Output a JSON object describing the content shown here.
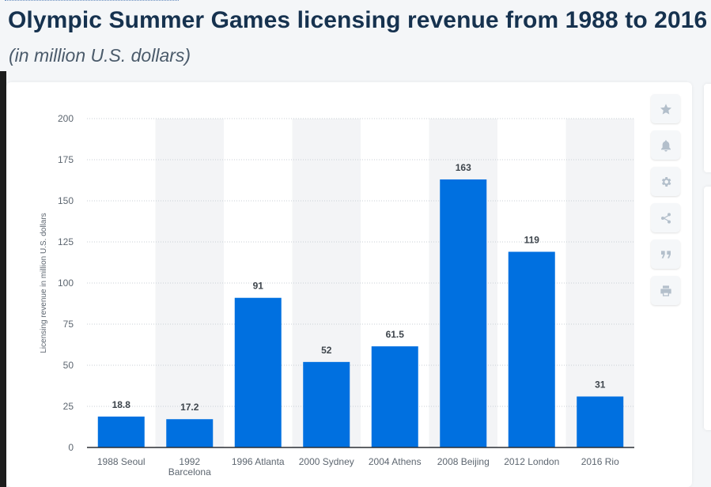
{
  "header": {
    "title": "Olympic Summer Games licensing revenue from 1988 to 2016",
    "subtitle": "(in million U.S. dollars)"
  },
  "toolbar": {
    "buttons": [
      {
        "name": "star-icon"
      },
      {
        "name": "bell-icon"
      },
      {
        "name": "gear-icon"
      },
      {
        "name": "share-icon"
      },
      {
        "name": "quote-icon"
      },
      {
        "name": "print-icon"
      }
    ]
  },
  "colors": {
    "bar": "#0070e0",
    "band": "#f3f4f6",
    "grid": "#c9cfd6"
  },
  "chart_data": {
    "type": "bar",
    "categories": [
      "1988 Seoul",
      "1992 Barcelona",
      "1996 Atlanta",
      "2000 Sydney",
      "2004 Athens",
      "2008 Beijing",
      "2012 London",
      "2016 Rio"
    ],
    "category_lines": [
      [
        "1988 Seoul"
      ],
      [
        "1992",
        "Barcelona"
      ],
      [
        "1996 Atlanta"
      ],
      [
        "2000 Sydney"
      ],
      [
        "2004 Athens"
      ],
      [
        "2008 Beijing"
      ],
      [
        "2012 London"
      ],
      [
        "2016 Rio"
      ]
    ],
    "values": [
      18.8,
      17.2,
      91,
      52,
      61.5,
      163,
      119,
      31
    ],
    "value_labels": [
      "18.8",
      "17.2",
      "91",
      "52",
      "61.5",
      "163",
      "119",
      "31"
    ],
    "ylabel": "Licensing revenue in million U.S. dollars",
    "ylim": [
      0,
      200
    ],
    "yticks": [
      0,
      25,
      50,
      75,
      100,
      125,
      150,
      175,
      200
    ],
    "grid": true,
    "legend": "none"
  }
}
